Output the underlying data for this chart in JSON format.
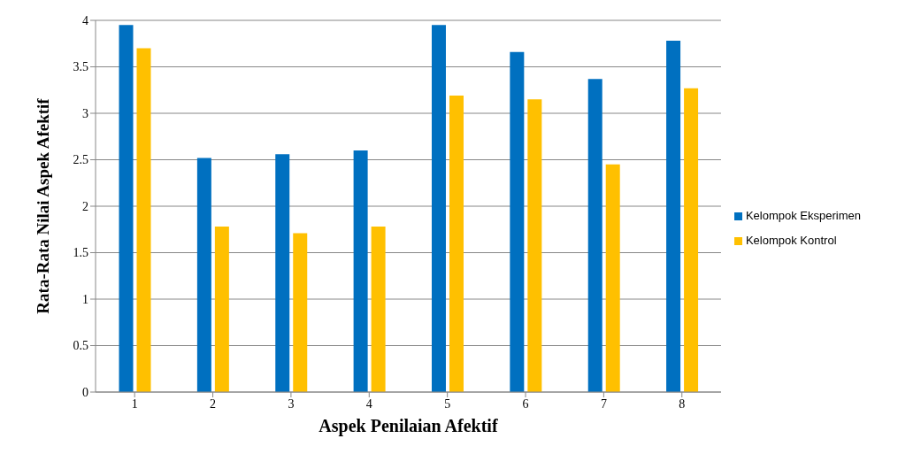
{
  "chart_data": {
    "type": "bar",
    "xlabel": "Aspek Penilaian Afektif",
    "ylabel": "Rata-Rata Nilai Aspek Afektif",
    "categories": [
      "1",
      "2",
      "3",
      "4",
      "5",
      "6",
      "7",
      "8"
    ],
    "series": [
      {
        "name": "Kelompok Eksperimen",
        "color": "#0070c0",
        "values": [
          3.95,
          2.52,
          2.56,
          2.6,
          3.95,
          3.66,
          3.37,
          3.78
        ]
      },
      {
        "name": "Kelompok Kontrol",
        "color": "#ffc000",
        "values": [
          3.7,
          1.78,
          1.71,
          1.78,
          3.19,
          3.15,
          2.45,
          3.27
        ]
      }
    ],
    "ylim": [
      0,
      4
    ],
    "yticks": [
      0,
      0.5,
      1,
      1.5,
      2,
      2.5,
      3,
      3.5,
      4
    ],
    "grid": "y",
    "legend": "right"
  }
}
